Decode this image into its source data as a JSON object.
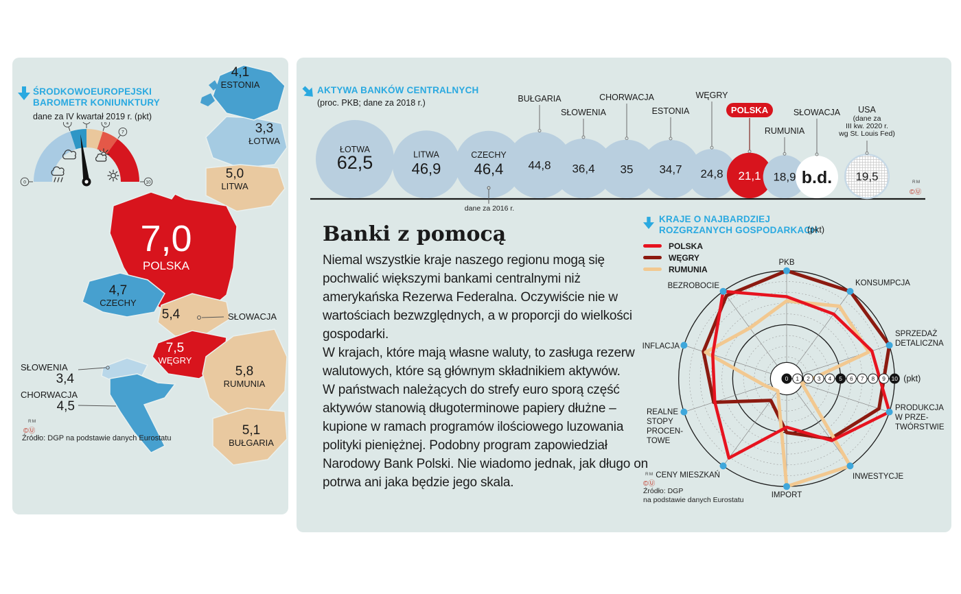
{
  "left_panel": {
    "title_line1": "ŚRODKOWOEUROPEJSKI",
    "title_line2": "BAROMETR KONIUNKTURY",
    "source_rm": "RM",
    "source_mark": "©Ⓤ",
    "source": "Źródło: DGP na podstawie danych Eurostatu"
  },
  "article": {
    "title": "Banki z pomocą",
    "paragraphs": [
      "Niemal wszystkie kraje naszego regionu mogą się pochwalić większymi bankami centralnymi niż amerykańska Rezerwa Federalna. Oczywiście nie w wartościach bezwzględnych, a w proporcji do wielkości gospodarki.",
      "W krajach, które mają własne waluty, to zasługa rezerw walutowych, które są głównym składnikiem aktywów.",
      "W państwach należących do strefy euro sporą część aktywów stanowią długoterminowe papiery dłużne – kupione w ramach programów ilościowego luzowania polityki pieniężnej. Podobny program zapowiedział Narodowy Bank Polski. Nie wiadomo jednak, jak długo on potrwa ani jaka będzie jego skala."
    ]
  },
  "bubble_extra": {
    "rm": "RM",
    "mark": "©Ⓤ"
  },
  "radar_source": {
    "rm": "RM",
    "mark": "©Ⓤ",
    "line1": "Źródło: DGP",
    "line2": "na podstawie danych Eurostatu"
  },
  "chart_data": [
    {
      "type": "gauge",
      "title": "ŚRODKOWOEUROPEJSKI BAROMETR KONIUNKTURY",
      "subtitle": "dane za IV kwartał 2019 r. (pkt)",
      "range": [
        0,
        10
      ],
      "ticks": [
        0,
        4,
        5,
        6,
        7,
        10
      ],
      "needle_value": 4.6,
      "segments": [
        {
          "from": 0,
          "to": 4,
          "color": "#a9cbe3"
        },
        {
          "from": 4,
          "to": 5,
          "color": "#2e96c6"
        },
        {
          "from": 5,
          "to": 6,
          "color": "#eac79c"
        },
        {
          "from": 6,
          "to": 7,
          "color": "#e45848"
        },
        {
          "from": 7,
          "to": 10,
          "color": "#d6161f"
        }
      ],
      "weather_icons": [
        "rain-cloud",
        "cloud",
        "sun-behind-cloud",
        "sun"
      ],
      "map_values": [
        {
          "name": "ESTONIA",
          "value": "4,1",
          "color": "#47a0cf"
        },
        {
          "name": "ŁOTWA",
          "value": "3,3",
          "color": "#a5cbe2"
        },
        {
          "name": "LITWA",
          "value": "5,0",
          "color": "#e9c9a0"
        },
        {
          "name": "POLSKA",
          "value": "7,0",
          "color": "#d8141d"
        },
        {
          "name": "CZECHY",
          "value": "4,7",
          "color": "#47a0cf"
        },
        {
          "name": "SŁOWACJA",
          "value": "5,4",
          "color": "#e9c9a0"
        },
        {
          "name": "WĘGRY",
          "value": "7,5",
          "color": "#d8141d"
        },
        {
          "name": "SŁOWENIA",
          "value": "3,4",
          "color": "#b9d7e9"
        },
        {
          "name": "CHORWACJA",
          "value": "4,5",
          "color": "#47a0cf"
        },
        {
          "name": "RUMUNIA",
          "value": "5,8",
          "color": "#e9c9a0"
        },
        {
          "name": "BUŁGARIA",
          "value": "5,1",
          "color": "#e9c9a0"
        }
      ]
    },
    {
      "type": "bubble",
      "title": "AKTYWA BANKÓW CENTRALNYCH",
      "subtitle": "(proc. PKB; dane za 2018 r.)",
      "unit": "proc. PKB",
      "items": [
        {
          "name": "ŁOTWA",
          "value": "62,5"
        },
        {
          "name": "LITWA",
          "value": "46,9"
        },
        {
          "name": "CZECHY",
          "value": "46,4",
          "note": "dane za 2016 r."
        },
        {
          "name": "BUŁGARIA",
          "value": "44,8"
        },
        {
          "name": "SŁOWENIA",
          "value": "36,4"
        },
        {
          "name": "CHORWACJA",
          "value": "35"
        },
        {
          "name": "ESTONIA",
          "value": "34,7"
        },
        {
          "name": "WĘGRY",
          "value": "24,8"
        },
        {
          "name": "POLSKA",
          "value": "21,1",
          "highlight": true
        },
        {
          "name": "RUMUNIA",
          "value": "18,9"
        },
        {
          "name": "SŁOWACJA",
          "value": "b.d.",
          "no_data": true
        },
        {
          "name": "USA",
          "value": "19,5",
          "pattern": true,
          "sub_label": [
            "(dane za",
            "III kw. 2020 r.",
            "wg St. Louis Fed)"
          ]
        }
      ],
      "colors": {
        "bubble": "#b9cfdf",
        "highlight": "#d8141d"
      }
    },
    {
      "type": "radar",
      "title_line1": "KRAJE O NAJBARDZIEJ",
      "title_line2": "ROZGRZANYCH GOSPODARKACH",
      "unit": "(pkt)",
      "range": [
        0,
        10
      ],
      "categories": [
        "PKB",
        "KONSUMPCJA",
        "SPRZEDAŻ DETALICZNA",
        "PRODUKCJA W PRZETWÓRSTWIE",
        "INWESTYCJE",
        "IMPORT",
        "CENY MIESZKAŃ",
        "REALNE STOPY PROCENTOWE",
        "INFLACJA",
        "BEZROBOCIE"
      ],
      "label_lines": [
        [
          "PKB"
        ],
        [
          "KONSUMPCJA"
        ],
        [
          "SPRZEDAŻ",
          "DETALICZNA"
        ],
        [
          "PRODUKCJA",
          "W PRZE-",
          "TWÓRSTWIE"
        ],
        [
          "INWESTYCJE"
        ],
        [
          "IMPORT"
        ],
        [
          "CENY MIESZKAŃ"
        ],
        [
          "REALNE",
          "STOPY",
          "PROCEN-",
          "TOWE"
        ],
        [
          "INFLACJA"
        ],
        [
          "BEZROBOCIE"
        ]
      ],
      "series": [
        {
          "name": "POLSKA",
          "color": "#e7131f",
          "values": [
            7.6,
            7.4,
            8.3,
            10,
            7.1,
            4.5,
            9.1,
            7.0,
            7.2,
            10
          ]
        },
        {
          "name": "WĘGRY",
          "color": "#8c1a10",
          "values": [
            10,
            10,
            10,
            9,
            6.9,
            5.0,
            2.5,
            7.1,
            8.1,
            9.5
          ]
        },
        {
          "name": "RUMUNIA",
          "color": "#f2c890",
          "values": [
            7.2,
            8.3,
            8.0,
            1.5,
            10,
            10,
            1.4,
            2.1,
            7.9,
            5.8
          ]
        }
      ]
    }
  ]
}
